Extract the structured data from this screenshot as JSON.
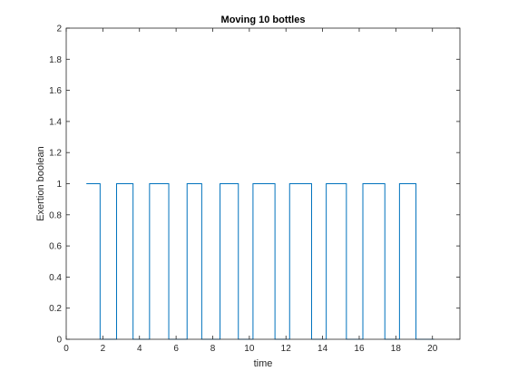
{
  "chart_data": {
    "type": "line",
    "title": "Moving 10 bottles",
    "xlabel": "time",
    "ylabel": "Exertion boolean",
    "xlim": [
      0,
      21.5
    ],
    "ylim": [
      0,
      2
    ],
    "x_ticks": [
      0,
      2,
      4,
      6,
      8,
      10,
      12,
      14,
      16,
      18,
      20
    ],
    "y_ticks": [
      0,
      0.2,
      0.4,
      0.6,
      0.8,
      1,
      1.2,
      1.4,
      1.6,
      1.8,
      2
    ],
    "x_tick_labels": [
      "0",
      "2",
      "4",
      "6",
      "8",
      "10",
      "12",
      "14",
      "16",
      "18",
      "20"
    ],
    "y_tick_labels": [
      "0",
      "0.2",
      "0.4",
      "0.6",
      "0.8",
      "1",
      "1.2",
      "1.4",
      "1.6",
      "1.8",
      "2"
    ],
    "grid": false,
    "series": [
      {
        "color": "#0072bd",
        "x": [
          1.1,
          1.85,
          1.85,
          2.75,
          2.75,
          3.65,
          3.65,
          4.55,
          4.55,
          5.6,
          5.6,
          6.6,
          6.6,
          7.4,
          7.4,
          8.4,
          8.4,
          9.4,
          9.4,
          10.2,
          10.2,
          11.4,
          11.4,
          12.2,
          12.2,
          13.4,
          13.4,
          14.2,
          14.2,
          15.3,
          15.3,
          16.2,
          16.2,
          17.4,
          17.4,
          18.2,
          18.2,
          19.1,
          19.1,
          20.1
        ],
        "y": [
          1,
          1,
          0,
          0,
          1,
          1,
          0,
          0,
          1,
          1,
          0,
          0,
          1,
          1,
          0,
          0,
          1,
          1,
          0,
          0,
          1,
          1,
          0,
          0,
          1,
          1,
          0,
          0,
          1,
          1,
          0,
          0,
          1,
          1,
          0,
          0,
          1,
          1,
          0,
          0
        ]
      }
    ]
  }
}
